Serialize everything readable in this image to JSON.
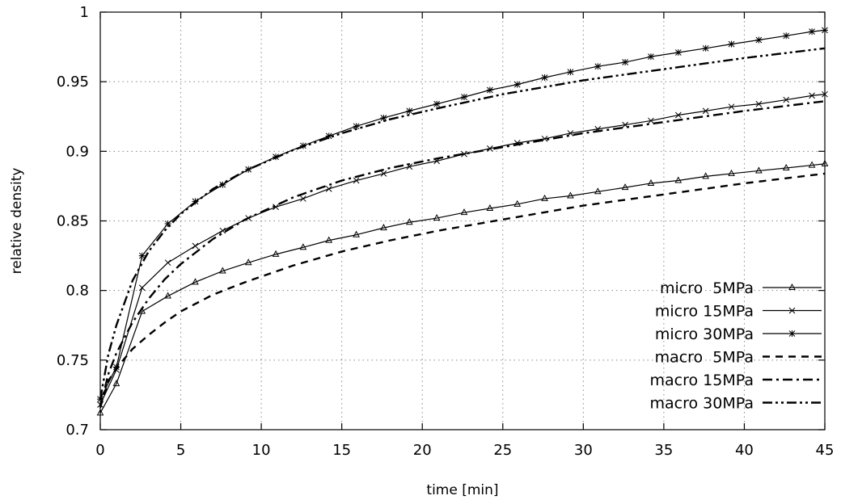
{
  "chart_data": {
    "type": "line",
    "title": "",
    "xlabel": "time [min]",
    "ylabel": "relative density",
    "xlim": [
      0,
      45
    ],
    "ylim": [
      0.7,
      1.0
    ],
    "x_ticks": [
      "0",
      "5",
      "10",
      "15",
      "20",
      "25",
      "30",
      "35",
      "40",
      "45"
    ],
    "y_ticks": [
      "0.7",
      "0.75",
      "0.8",
      "0.85",
      "0.9",
      "0.95",
      "1"
    ],
    "grid": "dotted",
    "legend_position": "bottom-right",
    "series": [
      {
        "name": "micro  5MPa",
        "style": "solid",
        "marker": "triangle",
        "x": [
          0,
          1,
          2.6,
          4.2,
          5.9,
          7.6,
          9.2,
          10.9,
          12.6,
          14.2,
          15.9,
          17.6,
          19.2,
          20.9,
          22.6,
          24.2,
          25.9,
          27.6,
          29.2,
          30.9,
          32.6,
          34.2,
          35.9,
          37.6,
          39.2,
          40.9,
          42.6,
          44.2,
          45
        ],
        "y": [
          0.712,
          0.733,
          0.785,
          0.796,
          0.806,
          0.814,
          0.82,
          0.826,
          0.831,
          0.836,
          0.84,
          0.845,
          0.849,
          0.852,
          0.856,
          0.859,
          0.862,
          0.866,
          0.868,
          0.871,
          0.874,
          0.877,
          0.879,
          0.882,
          0.884,
          0.886,
          0.888,
          0.89,
          0.891
        ]
      },
      {
        "name": "micro 15MPa",
        "style": "solid",
        "marker": "cross",
        "x": [
          0,
          1,
          2.6,
          4.2,
          5.9,
          7.6,
          9.2,
          10.9,
          12.6,
          14.2,
          15.9,
          17.6,
          19.2,
          20.9,
          22.6,
          24.2,
          25.9,
          27.6,
          29.2,
          30.9,
          32.6,
          34.2,
          35.9,
          37.6,
          39.2,
          40.9,
          42.6,
          44.2,
          45
        ],
        "y": [
          0.718,
          0.743,
          0.802,
          0.82,
          0.832,
          0.843,
          0.852,
          0.86,
          0.866,
          0.873,
          0.879,
          0.884,
          0.889,
          0.893,
          0.898,
          0.902,
          0.906,
          0.909,
          0.913,
          0.916,
          0.919,
          0.922,
          0.926,
          0.929,
          0.932,
          0.934,
          0.937,
          0.94,
          0.941
        ]
      },
      {
        "name": "micro 30MPa",
        "style": "solid",
        "marker": "star",
        "x": [
          0,
          1,
          2.6,
          4.2,
          5.9,
          7.6,
          9.2,
          10.9,
          12.6,
          14.2,
          15.9,
          17.6,
          19.2,
          20.9,
          22.6,
          24.2,
          25.9,
          27.6,
          29.2,
          30.9,
          32.6,
          34.2,
          35.9,
          37.6,
          39.2,
          40.9,
          42.6,
          44.2,
          45
        ],
        "y": [
          0.722,
          0.745,
          0.825,
          0.848,
          0.864,
          0.876,
          0.887,
          0.896,
          0.904,
          0.911,
          0.918,
          0.924,
          0.929,
          0.934,
          0.939,
          0.944,
          0.948,
          0.953,
          0.957,
          0.961,
          0.964,
          0.968,
          0.971,
          0.974,
          0.977,
          0.98,
          0.983,
          0.986,
          0.987
        ]
      },
      {
        "name": "macro  5MPa",
        "style": "dashed",
        "marker": "none",
        "x": [
          0,
          0.5,
          1,
          2,
          3,
          4,
          5,
          7,
          9,
          12,
          15,
          18,
          21,
          25,
          30,
          35,
          40,
          45
        ],
        "y": [
          0.716,
          0.735,
          0.744,
          0.758,
          0.768,
          0.777,
          0.785,
          0.797,
          0.806,
          0.818,
          0.828,
          0.836,
          0.843,
          0.851,
          0.861,
          0.869,
          0.877,
          0.884
        ]
      },
      {
        "name": "macro 15MPa",
        "style": "dashdot",
        "marker": "none",
        "x": [
          0,
          0.5,
          1,
          2,
          3,
          4,
          5,
          7,
          9,
          12,
          15,
          18,
          21,
          25,
          30,
          35,
          40,
          45
        ],
        "y": [
          0.716,
          0.74,
          0.755,
          0.777,
          0.794,
          0.808,
          0.819,
          0.837,
          0.851,
          0.867,
          0.879,
          0.888,
          0.895,
          0.903,
          0.913,
          0.921,
          0.929,
          0.936
        ]
      },
      {
        "name": "macro 30MPa",
        "style": "dashdotdot",
        "marker": "none",
        "x": [
          0,
          0.5,
          1,
          2,
          3,
          4,
          5,
          7,
          9,
          12,
          15,
          18,
          21,
          25,
          30,
          35,
          40,
          45
        ],
        "y": [
          0.722,
          0.754,
          0.775,
          0.807,
          0.828,
          0.843,
          0.855,
          0.873,
          0.886,
          0.901,
          0.913,
          0.923,
          0.931,
          0.941,
          0.951,
          0.959,
          0.967,
          0.974
        ]
      }
    ]
  }
}
